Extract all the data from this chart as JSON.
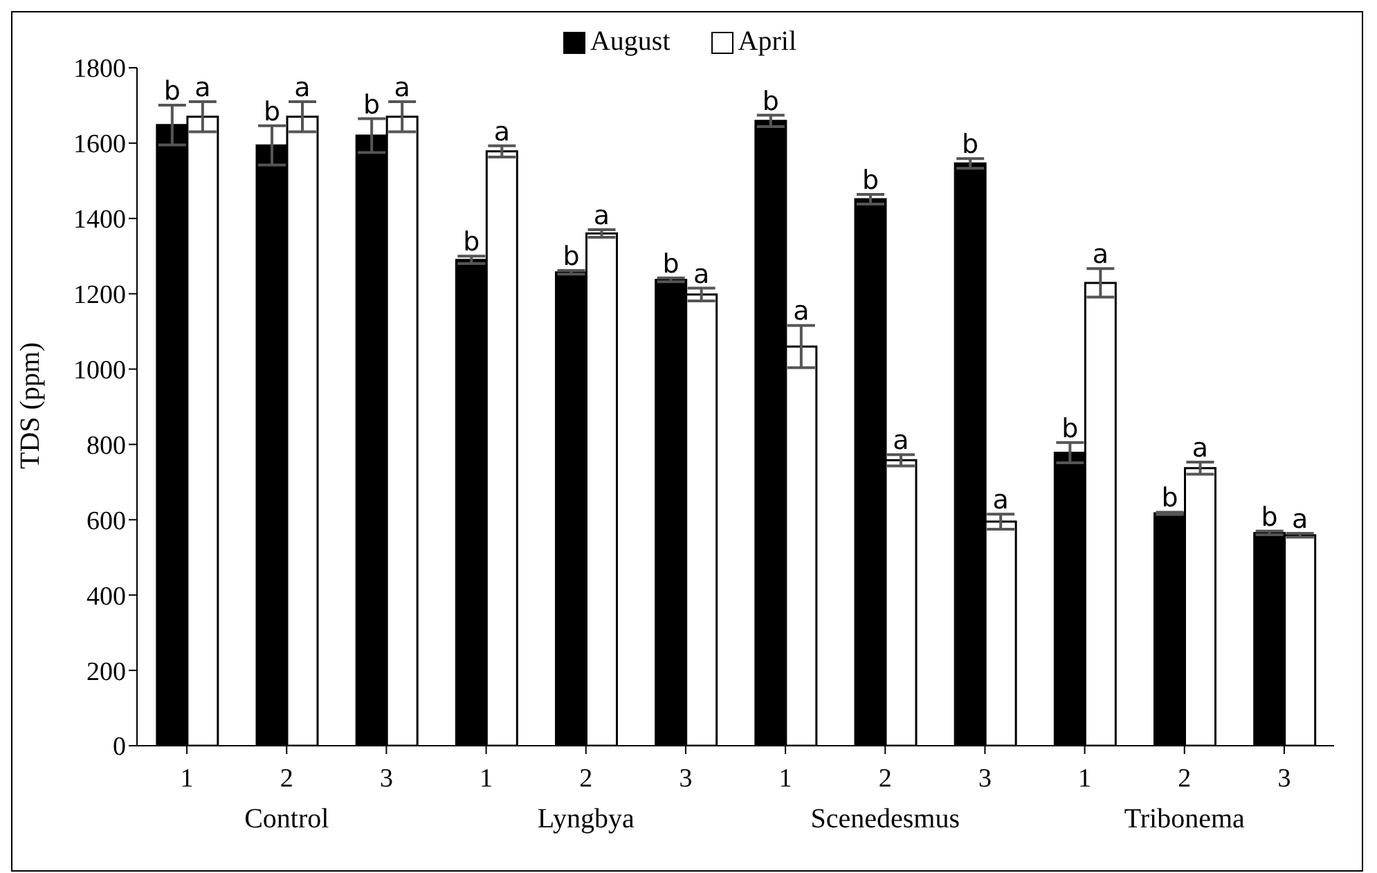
{
  "chart_data": {
    "type": "bar",
    "ylabel": "TDS (ppm)",
    "categories": [
      "1",
      "2",
      "3",
      "1",
      "2",
      "3",
      "1",
      "2",
      "3",
      "1",
      "2",
      "3"
    ],
    "annotations": [
      "Control",
      "Lyngbya",
      "Scenedesmus",
      "Tribonema"
    ],
    "series": [
      {
        "name": "August",
        "color": "#000000",
        "values": [
          1648,
          1594,
          1620,
          1290,
          1257,
          1237,
          1659,
          1451,
          1546,
          778,
          617,
          565
        ],
        "errors": [
          53,
          52,
          45,
          10,
          5,
          5,
          15,
          13,
          13,
          27,
          3,
          5
        ],
        "value_labels": [
          "b",
          "b",
          "b",
          "b",
          "b",
          "b",
          "b",
          "b",
          "b",
          "b",
          "b",
          "b"
        ]
      },
      {
        "name": "April",
        "color": "#ffffff",
        "values": [
          1670,
          1670,
          1670,
          1578,
          1360,
          1198,
          1060,
          758,
          595,
          1229,
          737,
          559
        ],
        "errors": [
          40,
          40,
          40,
          15,
          10,
          17,
          56,
          15,
          20,
          38,
          16,
          5
        ],
        "value_labels": [
          "a",
          "a",
          "a",
          "a",
          "a",
          "a",
          "a",
          "a",
          "a",
          "a",
          "a",
          "a"
        ]
      }
    ],
    "ylim": [
      0,
      1800
    ],
    "yticks": [
      0,
      200,
      400,
      600,
      800,
      1000,
      1200,
      1400,
      1600,
      1800
    ],
    "grid": false,
    "legend": "top"
  }
}
